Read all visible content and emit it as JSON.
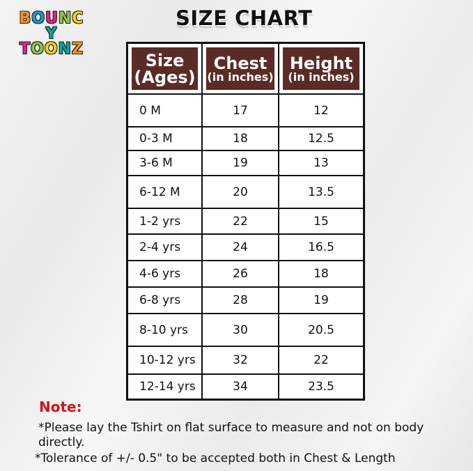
{
  "logo": {
    "line1": "BOUNCY",
    "line2": "TOONZ"
  },
  "title": "SIZE CHART",
  "headers": [
    {
      "main": "Size",
      "sub": "(Ages)"
    },
    {
      "main": "Chest",
      "sub": "(in inches)"
    },
    {
      "main": "Height",
      "sub": "(in inches)"
    }
  ],
  "rows": [
    {
      "size": "0 M",
      "chest": "17",
      "height": "12"
    },
    {
      "size": "0-3 M",
      "chest": "18",
      "height": "12.5"
    },
    {
      "size": "3-6 M",
      "chest": "19",
      "height": "13"
    },
    {
      "size": "6-12 M",
      "chest": "20",
      "height": "13.5"
    },
    {
      "size": "1-2 yrs",
      "chest": "22",
      "height": "15"
    },
    {
      "size": "2-4 yrs",
      "chest": "24",
      "height": "16.5"
    },
    {
      "size": "4-6 yrs",
      "chest": "26",
      "height": "18"
    },
    {
      "size": "6-8 yrs",
      "chest": "28",
      "height": "19"
    },
    {
      "size": "8-10 yrs",
      "chest": "30",
      "height": "20.5"
    },
    {
      "size": "10-12 yrs",
      "chest": "32",
      "height": "22"
    },
    {
      "size": "12-14 yrs",
      "chest": "34",
      "height": "23.5"
    }
  ],
  "note": {
    "label": "Note:",
    "line1": "*Please lay the Tshirt on flat surface to measure and not on body directly.",
    "line2": "*Tolerance of +/- 0.5\" to be accepted both in Chest & Length"
  },
  "colors": {
    "header_bg": "#5b2b26",
    "note": "#d5121a"
  }
}
